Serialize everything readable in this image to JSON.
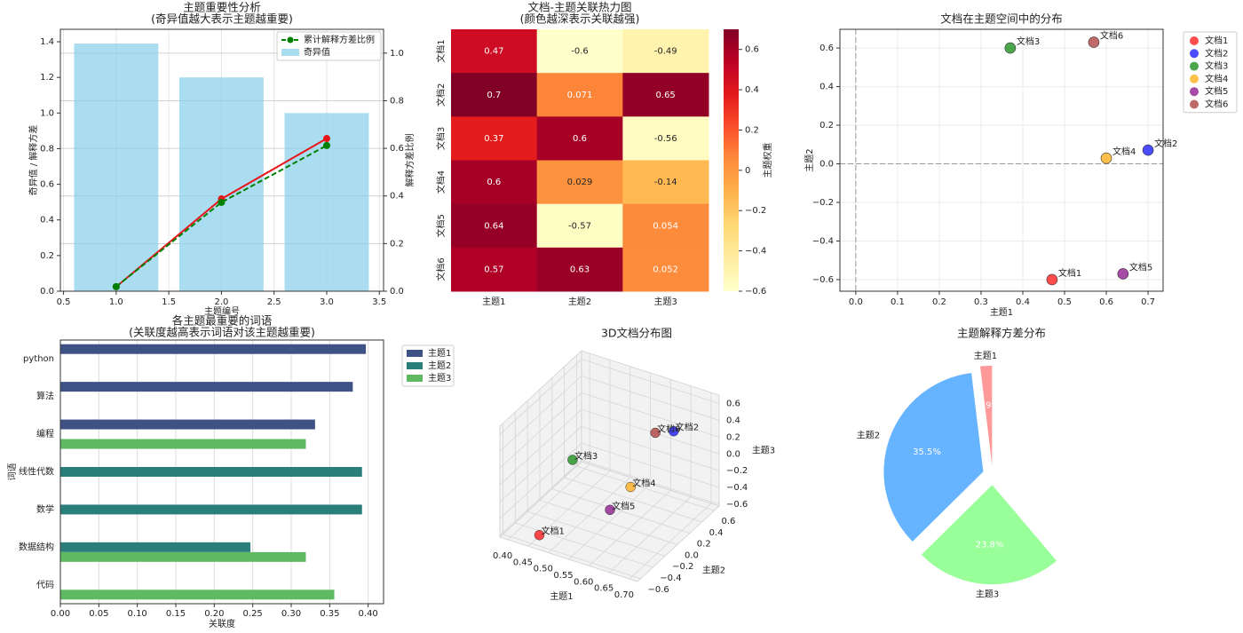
{
  "chart_data": [
    {
      "type": "bar_line",
      "title": "主题重要性分析",
      "subtitle": "(奇异值越大表示主题越重要)",
      "x_label": "主题编号",
      "y_label": "奇异值 / 解释方差",
      "y2_label": "解释方差比例",
      "x": [
        1,
        2,
        3
      ],
      "series": [
        {
          "name": "奇异值",
          "type": "bar",
          "color": "#87ceeb",
          "alpha": 0.7,
          "values": [
            1.39,
            1.2,
            1.0
          ]
        },
        {
          "type": "line",
          "color": "#e8161b",
          "values": [
            0.025,
            0.518,
            0.857
          ]
        },
        {
          "name": "累计解释方差比例",
          "type": "line",
          "color": "#008000",
          "line_style": "dashed",
          "axis": "y2",
          "values": [
            0.019,
            0.373,
            0.612
          ]
        }
      ],
      "xlim": [
        0.47,
        3.54
      ],
      "xticks": [
        0.5,
        {
          "value": 1,
          "label": "1.0"
        },
        1.5,
        {
          "value": 2,
          "label": "2.0"
        },
        2.5,
        {
          "value": 3,
          "label": "3.0"
        },
        3.5
      ],
      "ylim": [
        0,
        1.47
      ],
      "yticks": [
        {
          "value": 0,
          "label": "0.0"
        },
        0.2,
        0.4,
        0.6,
        0.8,
        {
          "value": 1,
          "label": "1.0"
        },
        1.2,
        1.4
      ],
      "y2lim": [
        0,
        1.1
      ],
      "y2ticks": [
        {
          "value": 0,
          "label": "0.0"
        },
        0.2,
        0.4,
        0.6,
        0.8,
        {
          "value": 1,
          "label": "1.0"
        }
      ],
      "grid": true,
      "legend": "upper right"
    },
    {
      "type": "heatmap",
      "title": "文档-主题关联热力图",
      "subtitle": "(颜色越深表示关联越强)",
      "x_categories": [
        "主题1",
        "主题2",
        "主题3"
      ],
      "y_categories": [
        "文档1",
        "文档2",
        "文档3",
        "文档4",
        "文档5",
        "文档6"
      ],
      "values": [
        [
          0.47,
          -0.6,
          -0.49
        ],
        [
          0.7,
          0.071,
          0.65
        ],
        [
          0.37,
          0.6,
          -0.56
        ],
        [
          0.6,
          0.029,
          -0.14
        ],
        [
          0.64,
          -0.57,
          0.054
        ],
        [
          0.57,
          0.63,
          0.052
        ]
      ],
      "colormap": "YlOrRd",
      "clim": [
        -0.6,
        0.7
      ],
      "colorbar_label": "主题权重",
      "colorbar_ticks": [
        {
          "value": -0.6,
          "label": "−0.6"
        },
        {
          "value": -0.4,
          "label": "−0.4"
        },
        {
          "value": -0.2,
          "label": "−0.2"
        },
        0,
        0.2,
        0.4,
        0.6
      ]
    },
    {
      "type": "scatter",
      "title": "文档在主题空间中的分布",
      "x_label": "主题1",
      "y_label": "主题2",
      "series": [
        {
          "name": "文档1",
          "color": "red",
          "x": [
            0.47
          ],
          "values": [
            -0.6
          ]
        },
        {
          "name": "文档2",
          "color": "blue",
          "x": [
            0.7
          ],
          "values": [
            0.071
          ]
        },
        {
          "name": "文档3",
          "color": "green",
          "x": [
            0.37
          ],
          "values": [
            0.6
          ]
        },
        {
          "name": "文档4",
          "color": "orange",
          "x": [
            0.6
          ],
          "values": [
            0.029
          ]
        },
        {
          "name": "文档5",
          "color": "purple",
          "x": [
            0.64
          ],
          "values": [
            -0.57
          ]
        },
        {
          "name": "文档6",
          "color": "brown",
          "x": [
            0.57
          ],
          "values": [
            0.63
          ]
        }
      ],
      "alpha": 0.7,
      "xlim": [
        -0.038,
        0.736
      ],
      "xticks": [
        {
          "value": 0,
          "label": "0.0"
        },
        0.1,
        0.2,
        0.3,
        0.4,
        0.5,
        0.6,
        0.7
      ],
      "ylim": [
        -0.66,
        0.697
      ],
      "yticks": [
        {
          "value": -0.6,
          "label": "−0.6"
        },
        {
          "value": -0.4,
          "label": "−0.4"
        },
        {
          "value": -0.2,
          "label": "−0.2"
        },
        {
          "value": 0,
          "label": "0.0"
        },
        0.2,
        0.4,
        0.6
      ],
      "hlines": [
        0
      ],
      "vlines": [
        0
      ],
      "grid": true,
      "legend": "outside upper right"
    },
    {
      "type": "grouped_hbar",
      "title": "各主题最重要的词语",
      "subtitle": "(关联度越高表示词语对该主题越重要)",
      "x_label": "关联度",
      "y_label": "词语",
      "categories": [
        "python",
        "算法",
        "编程",
        "线性代数",
        "数学",
        "数据结构",
        "代码"
      ],
      "series": [
        {
          "name": "主题1",
          "color": "#3e5286",
          "values": [
            0.397,
            0.38,
            0.331,
            null,
            null,
            null,
            null
          ]
        },
        {
          "name": "主题2",
          "color": "#2a7f7a",
          "values": [
            null,
            null,
            null,
            0.392,
            0.392,
            0.247,
            null
          ]
        },
        {
          "name": "主题3",
          "color": "#5fb962",
          "values": [
            null,
            null,
            0.319,
            null,
            null,
            0.319,
            0.356
          ]
        }
      ],
      "xlim": [
        0,
        0.42
      ],
      "xticks": [
        {
          "value": 0,
          "label": "0.00"
        },
        0.05,
        {
          "value": 0.1,
          "label": "0.10"
        },
        0.15,
        {
          "value": 0.2,
          "label": "0.20"
        },
        0.25,
        {
          "value": 0.3,
          "label": "0.30"
        },
        0.35,
        {
          "value": 0.4,
          "label": "0.40"
        }
      ],
      "grid": true,
      "legend": "outside upper right"
    },
    {
      "type": "scatter3d",
      "title": "3D文档分布图",
      "x_label": "主题1",
      "y_label": "主题2",
      "z_label": "主题3",
      "series": [
        {
          "name": "文档1",
          "color": "red",
          "x": [
            0.47
          ],
          "y": [
            -0.6
          ],
          "z": [
            -0.49
          ]
        },
        {
          "name": "文档2",
          "color": "blue",
          "x": [
            0.7
          ],
          "y": [
            0.071
          ],
          "z": [
            0.65
          ]
        },
        {
          "name": "文档3",
          "color": "green",
          "x": [
            0.37
          ],
          "y": [
            0.6
          ],
          "z": [
            -0.56
          ]
        },
        {
          "name": "文档4",
          "color": "orange",
          "x": [
            0.6
          ],
          "y": [
            0.029
          ],
          "z": [
            -0.14
          ]
        },
        {
          "name": "文档5",
          "color": "purple",
          "x": [
            0.64
          ],
          "y": [
            -0.57
          ],
          "z": [
            0.054
          ]
        },
        {
          "name": "文档6",
          "color": "brown",
          "x": [
            0.57
          ],
          "y": [
            0.63
          ],
          "z": [
            0.052
          ]
        }
      ],
      "alpha": 0.7,
      "xlim": [
        0.38,
        0.72
      ],
      "xticks": [
        {
          "value": 0.4,
          "label": "0.40"
        },
        0.45,
        {
          "value": 0.5,
          "label": "0.50"
        },
        0.55,
        {
          "value": 0.6,
          "label": "0.60"
        },
        0.65,
        {
          "value": 0.7,
          "label": "0.70"
        }
      ],
      "ylim": [
        -0.65,
        0.68
      ],
      "yticks": [
        {
          "value": -0.6,
          "label": "−0.6"
        },
        {
          "value": -0.4,
          "label": "−0.4"
        },
        {
          "value": -0.2,
          "label": "−0.2"
        },
        {
          "value": 0,
          "label": "0.0"
        },
        0.2,
        0.4,
        0.6
      ],
      "zlim": [
        -0.62,
        0.7
      ],
      "zticks": [
        {
          "value": -0.6,
          "label": "−0.6"
        },
        {
          "value": -0.4,
          "label": "−0.4"
        },
        {
          "value": -0.2,
          "label": "−0.2"
        },
        {
          "value": 0,
          "label": "0.0"
        },
        0.2,
        0.4,
        0.6
      ]
    },
    {
      "type": "pie",
      "title": "主题解释方差分布",
      "labels": [
        "主题1",
        "主题2",
        "主题3"
      ],
      "values": [
        1.9,
        35.5,
        23.8
      ],
      "value_labels": [
        "1.9%",
        "35.5%",
        "23.8%"
      ],
      "colors": [
        "#ff9999",
        "#66b3ff",
        "#99ff99"
      ],
      "explode": 0.1,
      "startangle": 90
    }
  ]
}
